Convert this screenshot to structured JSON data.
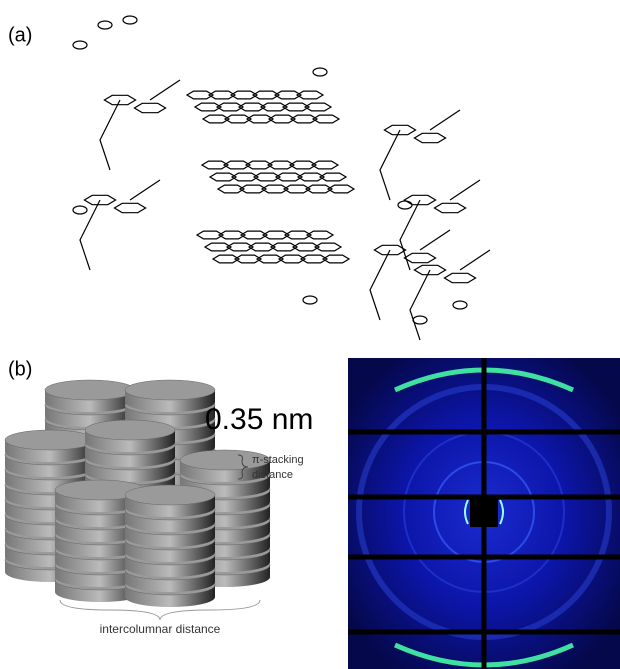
{
  "panel_a": {
    "label": "(a)"
  },
  "panel_b": {
    "label": "(b)",
    "spacing": "0.35 nm",
    "stacking_label": [
      "π-stacking",
      "distance"
    ],
    "intercolumnar_label": "intercolumnar distance"
  }
}
